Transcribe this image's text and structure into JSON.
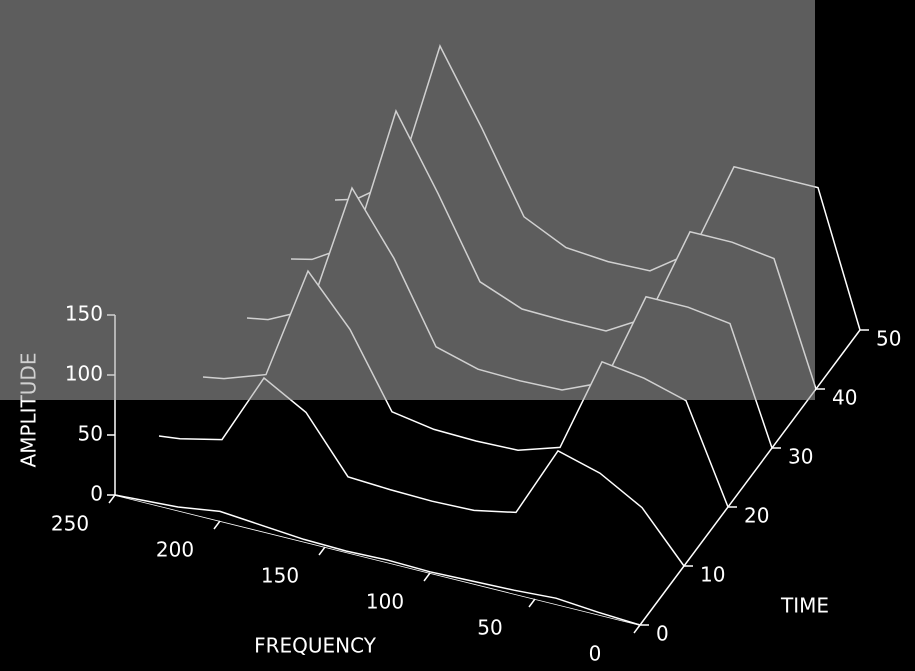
{
  "chart_data": {
    "type": "waterfall3d",
    "xlabel": "FREQUENCY",
    "ylabel": "TIME",
    "zlabel": "AMPLITUDE",
    "background": "#000000",
    "color": "#ffffff",
    "x": [
      0,
      20,
      40,
      60,
      80,
      100,
      120,
      140,
      160,
      180,
      200,
      220,
      240,
      250
    ],
    "xlim": [
      0,
      250
    ],
    "xticks": [
      0,
      50,
      100,
      150,
      200,
      250
    ],
    "ylim": [
      0,
      50
    ],
    "yticks": [
      0,
      10,
      20,
      30,
      40,
      50
    ],
    "zlim": [
      0,
      150
    ],
    "zticks": [
      0,
      50,
      100,
      150
    ],
    "series": [
      {
        "time": 50,
        "values": [
          0,
          110,
          110,
          110,
          30,
          6,
          5,
          8,
          25,
          90,
          150,
          30,
          5,
          0
        ]
      },
      {
        "time": 40,
        "values": [
          0,
          100,
          105,
          105,
          25,
          5,
          5,
          6,
          20,
          85,
          145,
          25,
          4,
          0
        ]
      },
      {
        "time": 30,
        "values": [
          0,
          95,
          100,
          100,
          20,
          5,
          4,
          5,
          15,
          80,
          130,
          20,
          3,
          0
        ]
      },
      {
        "time": 20,
        "values": [
          0,
          80,
          90,
          95,
          15,
          4,
          3,
          4,
          10,
          70,
          110,
          15,
          3,
          0
        ]
      },
      {
        "time": 10,
        "values": [
          0,
          40,
          60,
          70,
          10,
          3,
          2,
          3,
          5,
          50,
          70,
          10,
          2,
          0
        ]
      },
      {
        "time": 0,
        "values": [
          0,
          2,
          5,
          3,
          2,
          1,
          2,
          1,
          2,
          5,
          8,
          3,
          1,
          0
        ]
      }
    ]
  }
}
